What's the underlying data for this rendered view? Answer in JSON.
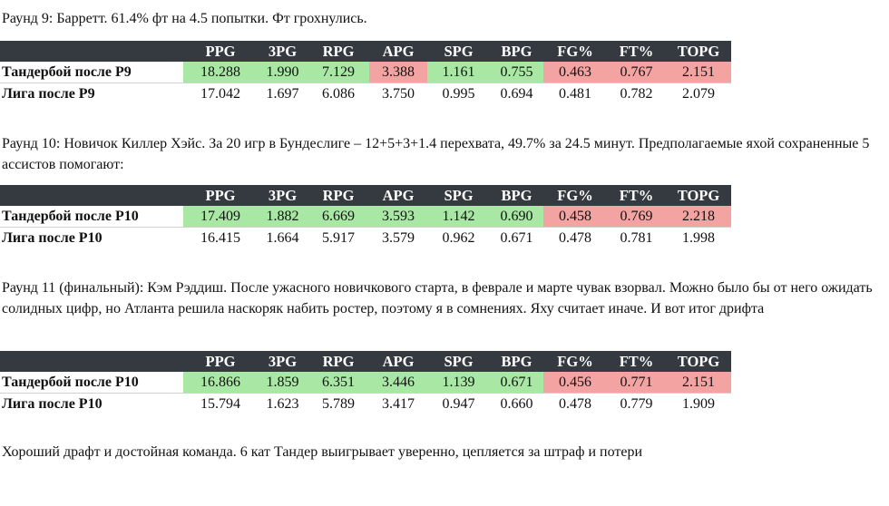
{
  "columns": [
    "",
    "PPG",
    "3PG",
    "RPG",
    "APG",
    "SPG",
    "BPG",
    "FG%",
    "FT%",
    "TOPG"
  ],
  "paragraphs": [
    "Раунд 9: Барретт. 61.4% фт на 4.5 попытки. Фт грохнулись.",
    "Раунд 10: Новичок Киллер Хэйс. За 20 игр в Бундеслиге – 12+5+3+1.4 перехвата, 49.7% за 24.5 минут. Предполагаемые яхой сохраненные 5 ассистов помогают:",
    "Раунд 11 (финальный): Кэм Рэддиш. После ужасного новичкового старта, в феврале и марте чувак взорвал. Можно было бы от него ожидать солидных цифр, но Атланта решила наскоряк набить ростер, поэтому я в сомнениях. Яху считает иначе. И вот итог дрифта",
    "Хороший драфт и достойная команда. 6 кат Тандер выигрывает уверенно, цепляется за штраф и потери"
  ],
  "tables": [
    {
      "team": {
        "label": "Тандербой после Р9",
        "values": [
          "18.288",
          "1.990",
          "7.129",
          "3.388",
          "1.161",
          "0.755",
          "0.463",
          "0.767",
          "2.151"
        ],
        "status": [
          "good",
          "good",
          "good",
          "bad",
          "good",
          "good",
          "bad",
          "bad",
          "bad"
        ]
      },
      "league": {
        "label": "Лига после Р9",
        "values": [
          "17.042",
          "1.697",
          "6.086",
          "3.750",
          "0.995",
          "0.694",
          "0.481",
          "0.782",
          "2.079"
        ]
      }
    },
    {
      "team": {
        "label": "Тандербой после Р10",
        "values": [
          "17.409",
          "1.882",
          "6.669",
          "3.593",
          "1.142",
          "0.690",
          "0.458",
          "0.769",
          "2.218"
        ],
        "status": [
          "good",
          "good",
          "good",
          "good",
          "good",
          "good",
          "bad",
          "bad",
          "bad"
        ]
      },
      "league": {
        "label": "Лига после Р10",
        "values": [
          "16.415",
          "1.664",
          "5.917",
          "3.579",
          "0.962",
          "0.671",
          "0.478",
          "0.781",
          "1.998"
        ]
      }
    },
    {
      "team": {
        "label": "Тандербой после Р10",
        "values": [
          "16.866",
          "1.859",
          "6.351",
          "3.446",
          "1.139",
          "0.671",
          "0.456",
          "0.771",
          "2.151"
        ],
        "status": [
          "good",
          "good",
          "good",
          "good",
          "good",
          "good",
          "bad",
          "bad",
          "bad"
        ]
      },
      "league": {
        "label": "Лига после Р10",
        "values": [
          "15.794",
          "1.623",
          "5.789",
          "3.417",
          "0.947",
          "0.660",
          "0.478",
          "0.779",
          "1.909"
        ]
      }
    }
  ]
}
